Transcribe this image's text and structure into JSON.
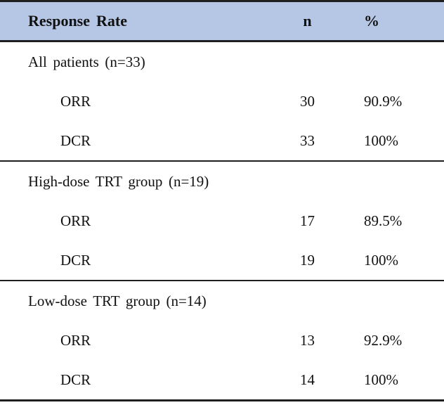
{
  "table": {
    "columns": [
      "Response Rate",
      "n",
      "%"
    ],
    "sections": [
      {
        "label": "All patients (n=33)",
        "rows": [
          {
            "name": "ORR",
            "n": "30",
            "pct": "90.9%"
          },
          {
            "name": "DCR",
            "n": "33",
            "pct": "100%"
          }
        ]
      },
      {
        "label": "High-dose TRT group (n=19)",
        "rows": [
          {
            "name": "ORR",
            "n": "17",
            "pct": "89.5%"
          },
          {
            "name": "DCR",
            "n": "19",
            "pct": "100%"
          }
        ]
      },
      {
        "label": "Low-dose TRT group (n=14)",
        "rows": [
          {
            "name": "ORR",
            "n": "13",
            "pct": "92.9%"
          },
          {
            "name": "DCR",
            "n": "14",
            "pct": "100%"
          }
        ]
      }
    ],
    "colors": {
      "header_bg": "#b5c7e4",
      "border": "#1f1f1f",
      "text": "#111111"
    }
  }
}
